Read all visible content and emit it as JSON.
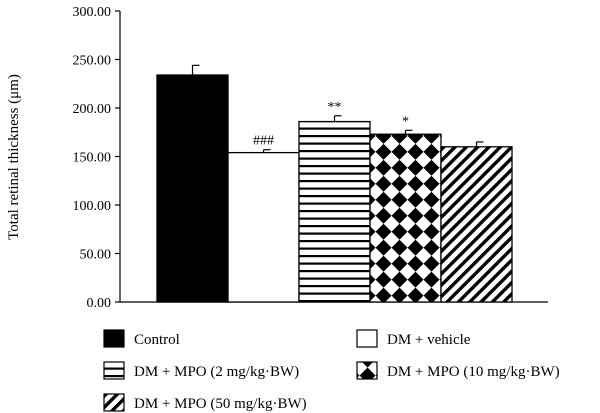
{
  "chart_data": {
    "type": "bar",
    "ylabel": "Total retinal thickness (μm)",
    "ylim": [
      0,
      300
    ],
    "yticks": [
      "0.00",
      "50.00",
      "100.00",
      "150.00",
      "200.00",
      "250.00",
      "300.00"
    ],
    "grid": false,
    "legend_position": "bottom",
    "series": [
      {
        "name": "Control",
        "value": 234,
        "error": 10,
        "pattern": "solid",
        "significance": ""
      },
      {
        "name": "DM + vehicle",
        "value": 154,
        "error": 3,
        "pattern": "white",
        "significance": "###"
      },
      {
        "name": "DM + MPO (2 mg/kg·BW)",
        "value": 186,
        "error": 6,
        "pattern": "horizontal-lines",
        "significance": "**"
      },
      {
        "name": "DM + MPO (10 mg/kg·BW)",
        "value": 173,
        "error": 4,
        "pattern": "checkerboard-diamond",
        "significance": "*"
      },
      {
        "name": "DM + MPO (50 mg/kg·BW)",
        "value": 160,
        "error": 5,
        "pattern": "diagonal-lines",
        "significance": ""
      }
    ]
  }
}
